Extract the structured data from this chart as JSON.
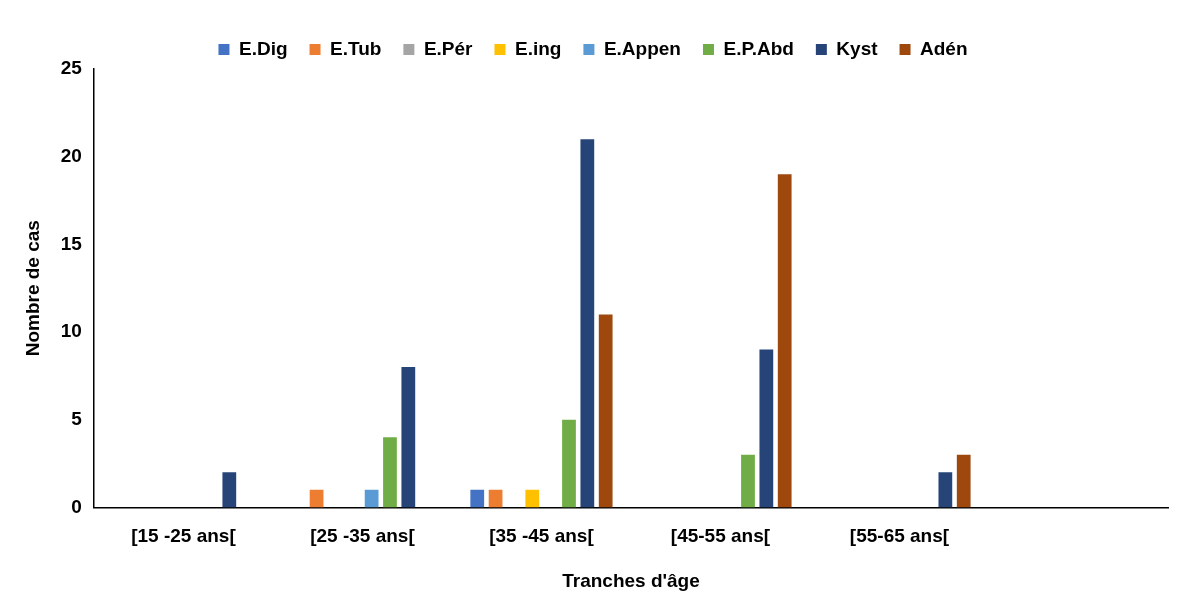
{
  "chart_data": {
    "type": "bar",
    "xlabel": "Tranches d'âge",
    "ylabel": "Nombre de cas",
    "categories": [
      "[15 -25 ans[",
      "[25 -35 ans[",
      "[35 -45 ans[",
      "[45-55 ans[",
      "[55-65 ans[",
      null
    ],
    "series": [
      {
        "name": "E.Dig",
        "color": "#4472c4",
        "values": [
          0,
          0,
          1,
          0,
          0,
          0
        ]
      },
      {
        "name": "E.Tub",
        "color": "#ed7d31",
        "values": [
          0,
          1,
          1,
          0,
          0,
          0
        ]
      },
      {
        "name": "E.Pér",
        "color": "#a5a5a5",
        "values": [
          0,
          0,
          0,
          0,
          0,
          0
        ]
      },
      {
        "name": "E.ing",
        "color": "#ffc000",
        "values": [
          0,
          0,
          1,
          0,
          0,
          0
        ]
      },
      {
        "name": "E.Appen",
        "color": "#5b9bd5",
        "values": [
          0,
          1,
          0,
          0,
          0,
          0
        ]
      },
      {
        "name": "E.P.Abd",
        "color": "#70ad47",
        "values": [
          0,
          4,
          5,
          3,
          0,
          0
        ]
      },
      {
        "name": "Kyst",
        "color": "#264478",
        "values": [
          2,
          8,
          21,
          9,
          2,
          0
        ]
      },
      {
        "name": "Adén",
        "color": "#9e480e",
        "values": [
          0,
          0,
          11,
          19,
          3,
          0
        ]
      }
    ],
    "ylim": [
      0,
      25
    ],
    "yticks": [
      0,
      5,
      10,
      15,
      20,
      25
    ],
    "grid": false,
    "legend": "top"
  }
}
